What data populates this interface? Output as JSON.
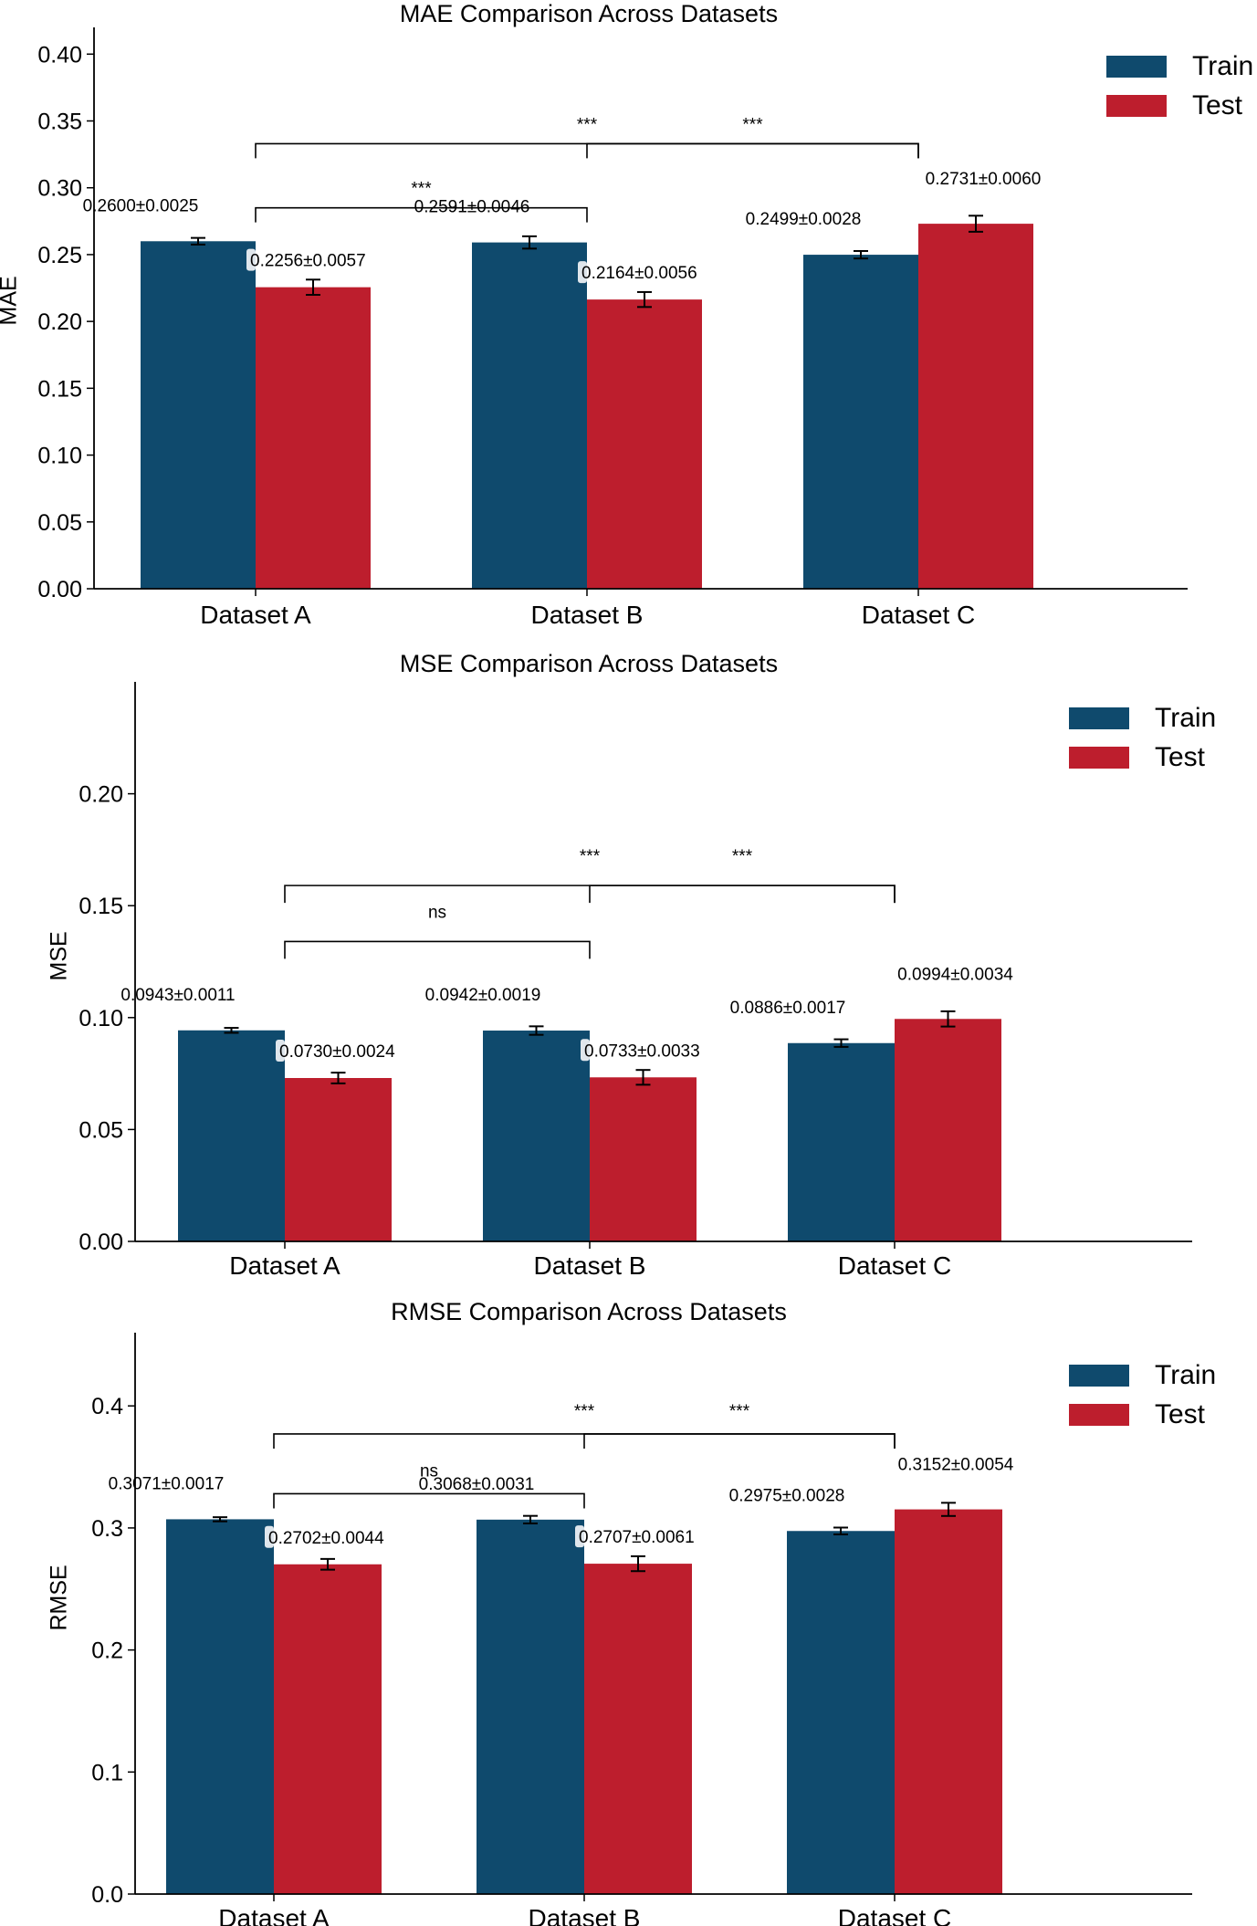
{
  "colors": {
    "train": "#0f4a6d",
    "test": "#bd1e2d"
  },
  "legend": {
    "train_label": "Train",
    "test_label": "Test"
  },
  "chart_data": [
    {
      "type": "bar",
      "title": "MAE Comparison Across Datasets",
      "xlabel": "",
      "ylabel": "MAE",
      "ylim": [
        0,
        0.42
      ],
      "yticks": [
        0,
        0.05,
        0.1,
        0.15,
        0.2,
        0.25,
        0.3,
        0.35,
        0.4
      ],
      "ytick_labels": [
        "0.00",
        "0.05",
        "0.10",
        "0.15",
        "0.20",
        "0.25",
        "0.30",
        "0.35",
        "0.40"
      ],
      "categories": [
        "Dataset A",
        "Dataset B",
        "Dataset C"
      ],
      "series": [
        {
          "name": "Train",
          "values": [
            0.26,
            0.2591,
            0.2499
          ],
          "errors": [
            0.0025,
            0.0046,
            0.0028
          ],
          "labels": [
            "0.2600±0.0025",
            "0.2591±0.0046",
            "0.2499±0.0028"
          ]
        },
        {
          "name": "Test",
          "values": [
            0.2256,
            0.2164,
            0.2731
          ],
          "errors": [
            0.0057,
            0.0056,
            0.006
          ],
          "labels": [
            "0.2256±0.0057",
            "0.2164±0.0056",
            "0.2731±0.0060"
          ]
        }
      ],
      "significance": [
        {
          "from": "Dataset A",
          "to": "Dataset B",
          "y": 0.285,
          "label": "***"
        },
        {
          "from": "Dataset A",
          "to": "Dataset C",
          "y": 0.333,
          "label": "***"
        },
        {
          "from": "Dataset B",
          "to": "Dataset C",
          "y": 0.333,
          "label": "***"
        }
      ]
    },
    {
      "type": "bar",
      "title": "MSE Comparison Across Datasets",
      "xlabel": "",
      "ylabel": "MSE",
      "ylim": [
        0,
        0.25
      ],
      "yticks": [
        0,
        0.05,
        0.1,
        0.15,
        0.2
      ],
      "ytick_labels": [
        "0.00",
        "0.05",
        "0.10",
        "0.15",
        "0.20"
      ],
      "categories": [
        "Dataset A",
        "Dataset B",
        "Dataset C"
      ],
      "series": [
        {
          "name": "Train",
          "values": [
            0.0943,
            0.0942,
            0.0886
          ],
          "errors": [
            0.0011,
            0.0019,
            0.0017
          ],
          "labels": [
            "0.0943±0.0011",
            "0.0942±0.0019",
            "0.0886±0.0017"
          ]
        },
        {
          "name": "Test",
          "values": [
            0.073,
            0.0733,
            0.0994
          ],
          "errors": [
            0.0024,
            0.0033,
            0.0034
          ],
          "labels": [
            "0.0730±0.0024",
            "0.0733±0.0033",
            "0.0994±0.0034"
          ]
        }
      ],
      "significance": [
        {
          "from": "Dataset A",
          "to": "Dataset B",
          "y": 0.134,
          "label": "ns"
        },
        {
          "from": "Dataset A",
          "to": "Dataset C",
          "y": 0.159,
          "label": "***"
        },
        {
          "from": "Dataset B",
          "to": "Dataset C",
          "y": 0.159,
          "label": "***"
        }
      ]
    },
    {
      "type": "bar",
      "title": "RMSE Comparison Across Datasets",
      "xlabel": "",
      "ylabel": "RMSE",
      "ylim": [
        0,
        0.46
      ],
      "yticks": [
        0,
        0.1,
        0.2,
        0.3,
        0.4
      ],
      "ytick_labels": [
        "0.0",
        "0.1",
        "0.2",
        "0.3",
        "0.4"
      ],
      "categories": [
        "Dataset A",
        "Dataset B",
        "Dataset C"
      ],
      "series": [
        {
          "name": "Train",
          "values": [
            0.3071,
            0.3068,
            0.2975
          ],
          "errors": [
            0.0017,
            0.0031,
            0.0028
          ],
          "labels": [
            "0.3071±0.0017",
            "0.3068±0.0031",
            "0.2975±0.0028"
          ]
        },
        {
          "name": "Test",
          "values": [
            0.2702,
            0.2707,
            0.3152
          ],
          "errors": [
            0.0044,
            0.0061,
            0.0054
          ],
          "labels": [
            "0.2702±0.0044",
            "0.2707±0.0061",
            "0.3152±0.0054"
          ]
        }
      ],
      "significance": [
        {
          "from": "Dataset A",
          "to": "Dataset B",
          "y": 0.328,
          "label": "ns"
        },
        {
          "from": "Dataset A",
          "to": "Dataset C",
          "y": 0.377,
          "label": "***"
        },
        {
          "from": "Dataset B",
          "to": "Dataset C",
          "y": 0.377,
          "label": "***"
        }
      ]
    }
  ]
}
